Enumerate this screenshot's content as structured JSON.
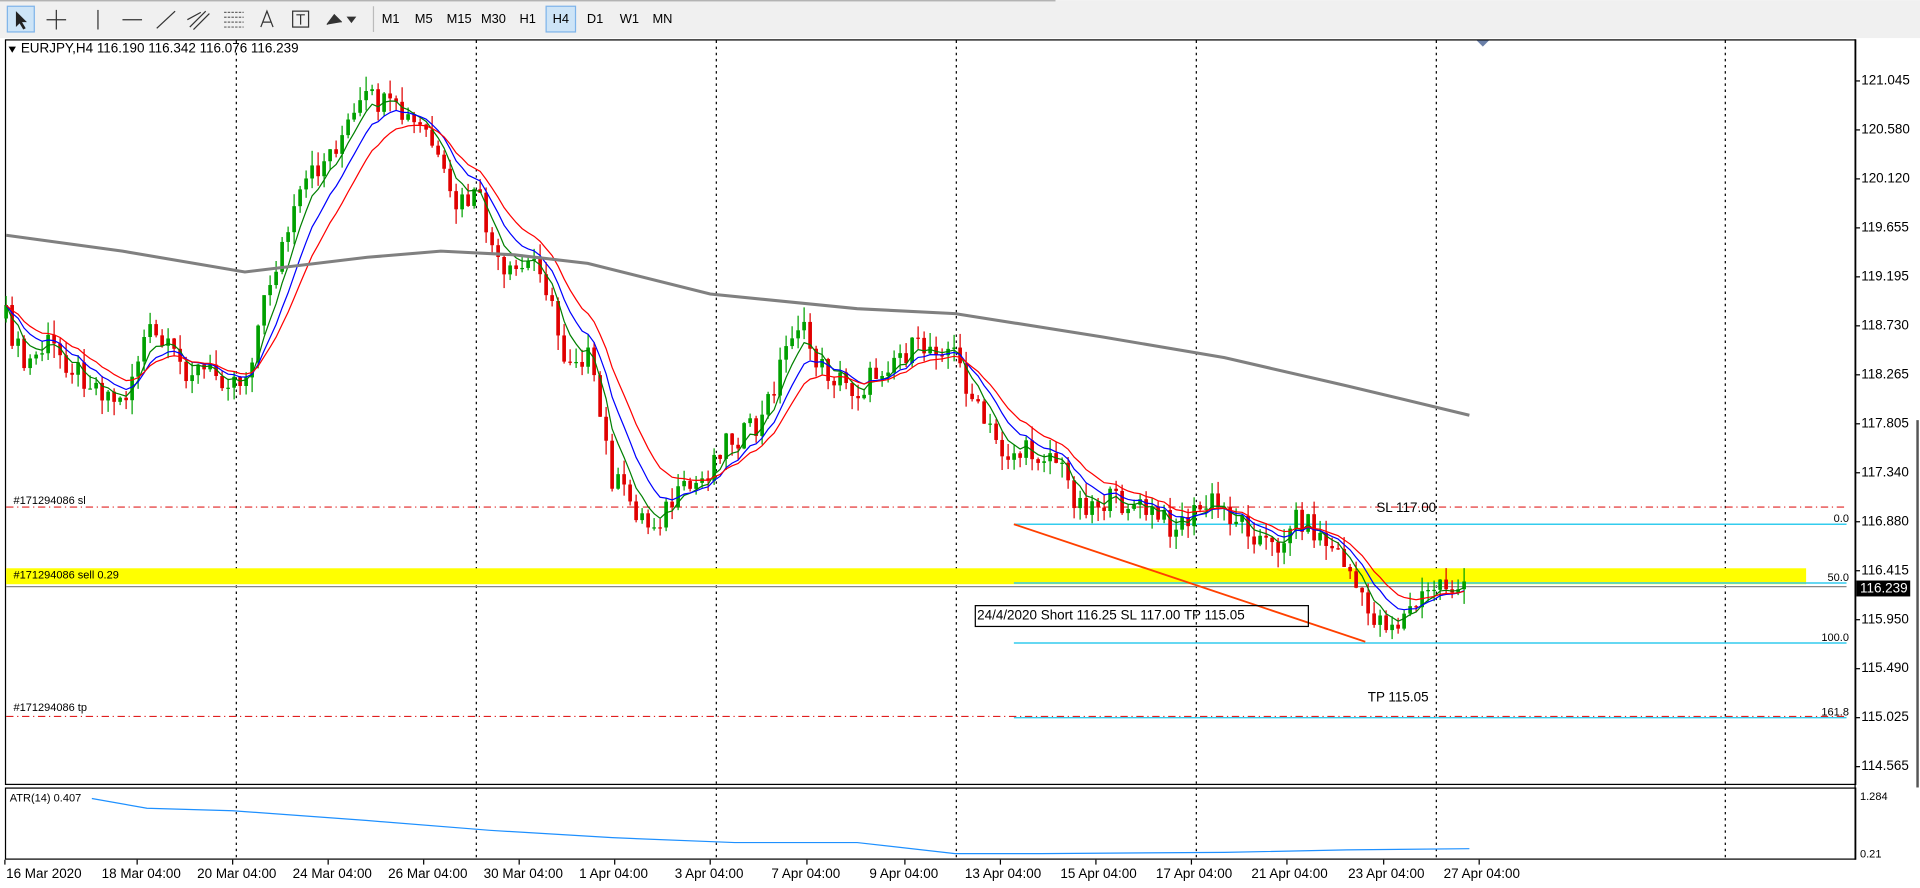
{
  "toolbar": {
    "timeframes": [
      "M1",
      "M5",
      "M15",
      "M30",
      "H1",
      "H4",
      "D1",
      "W1",
      "MN"
    ],
    "pressed": 5
  },
  "chart": {
    "header": "EURJPY,H4  116.190 116.342 116.076 116.239",
    "price_scale": [
      "121.045",
      "120.580",
      "120.120",
      "119.655",
      "119.195",
      "118.730",
      "118.265",
      "117.805",
      "117.340",
      "116.880",
      "116.415",
      "115.950",
      "115.490",
      "115.025",
      "114.565"
    ],
    "current_price": "116.239",
    "time_scale": [
      "16 Mar 2020",
      "18 Mar 04:00",
      "20 Mar 04:00",
      "24 Mar 04:00",
      "26 Mar 04:00",
      "30 Mar 04:00",
      "1 Apr 04:00",
      "3 Apr 04:00",
      "7 Apr 04:00",
      "9 Apr 04:00",
      "13 Apr 04:00",
      "15 Apr 04:00",
      "17 Apr 04:00",
      "21 Apr 04:00",
      "23 Apr 04:00",
      "27 Apr 04:00"
    ],
    "order_lines": {
      "sl": "#171294086 sl",
      "sell": "#171294086 sell 0.29",
      "tp": "#171294086 tp"
    },
    "annotations": {
      "sl": "SL 117.00",
      "tp": "TP 115.05",
      "note": "24/4/2020 Short 116.25 SL 117.00 TP 115.05"
    },
    "fibo_levels": [
      "0.0",
      "50.0",
      "100.0",
      "161.8"
    ],
    "indicator": {
      "label": "ATR(14) 0.407",
      "scale": [
        "1.284",
        "0.21"
      ]
    }
  }
}
